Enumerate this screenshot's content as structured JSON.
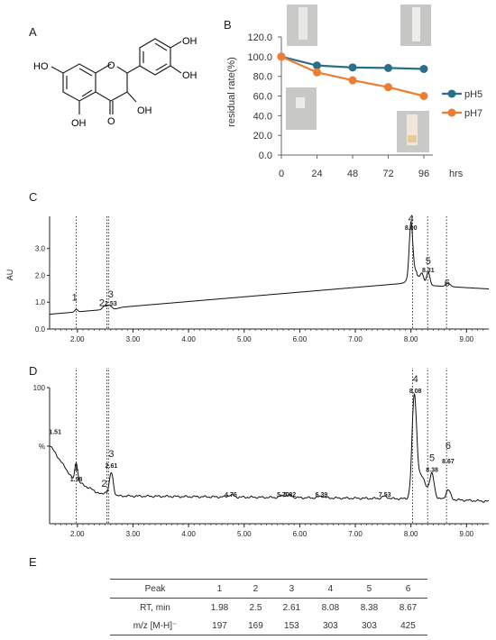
{
  "panels": {
    "a": "A",
    "b": "B",
    "c": "C",
    "d": "D",
    "e": "E"
  },
  "structure": {
    "oh1": "OH",
    "oh2": "OH",
    "oh3": "HO",
    "oh4": "OH",
    "oh5": "OH",
    "o_ring": "O",
    "o_keto": "O"
  },
  "colors": {
    "ph5": "#2a6f8a",
    "ph7": "#ee7d31"
  },
  "chart_data": [
    {
      "type": "line",
      "x": [
        0,
        24,
        48,
        72,
        96
      ],
      "xlabel": "hrs",
      "ylabel": "residual rate(%)",
      "ylim": [
        0,
        120
      ],
      "yticks": [
        "0.0",
        "20.0",
        "40.0",
        "60.0",
        "80.0",
        "100.0",
        "120.0"
      ],
      "series": [
        {
          "name": "pH5",
          "values": [
            100,
            91,
            89,
            88.5,
            87.5
          ]
        },
        {
          "name": "pH7",
          "values": [
            100,
            84,
            76,
            69,
            60
          ]
        }
      ]
    },
    {
      "type": "line",
      "ylabel": "AU",
      "xlim": [
        1.5,
        9.4
      ],
      "ylim": [
        0,
        4.2
      ],
      "xticks": [
        "2.00",
        "3.00",
        "4.00",
        "5.00",
        "6.00",
        "7.00",
        "8.00",
        "9.00"
      ],
      "yticks": [
        "0.0",
        "1.0",
        "2.0",
        "3.0"
      ],
      "peak_labels": [
        {
          "n": "1",
          "rt": ""
        },
        {
          "n": "2",
          "rt": ""
        },
        {
          "n": "3",
          "rt": "2.53"
        },
        {
          "n": "4",
          "rt": "8.00"
        },
        {
          "n": "5",
          "rt": "8.31"
        },
        {
          "n": "6",
          "rt": ""
        }
      ]
    },
    {
      "type": "line",
      "xlim": [
        1.5,
        9.4
      ],
      "ylim": [
        0,
        100
      ],
      "xticks": [
        "2.00",
        "3.00",
        "4.00",
        "5.00",
        "6.00",
        "7.00",
        "8.00",
        "9.00"
      ],
      "yticks": [
        "%",
        "100"
      ],
      "peak_labels": [
        {
          "n": "1",
          "rt": "1.98"
        },
        {
          "n": "2",
          "rt": ""
        },
        {
          "n": "3",
          "rt": "2.61"
        },
        {
          "n": "4",
          "rt": "8.08"
        },
        {
          "n": "5",
          "rt": "8.38"
        },
        {
          "n": "6",
          "rt": "8.67"
        }
      ],
      "other_labels": [
        "1.51",
        "4.76",
        "5.70",
        "5.82",
        "6.39",
        "7.53"
      ]
    },
    {
      "type": "table",
      "columns": [
        "Peak",
        "1",
        "2",
        "3",
        "4",
        "5",
        "6"
      ],
      "rows": [
        [
          "RT, min",
          "1.98",
          "2.5",
          "2.61",
          "8.08",
          "8.38",
          "8.67"
        ],
        [
          "m/z [M-H]⁻",
          "197",
          "169",
          "153",
          "303",
          "303",
          "425"
        ]
      ]
    }
  ]
}
